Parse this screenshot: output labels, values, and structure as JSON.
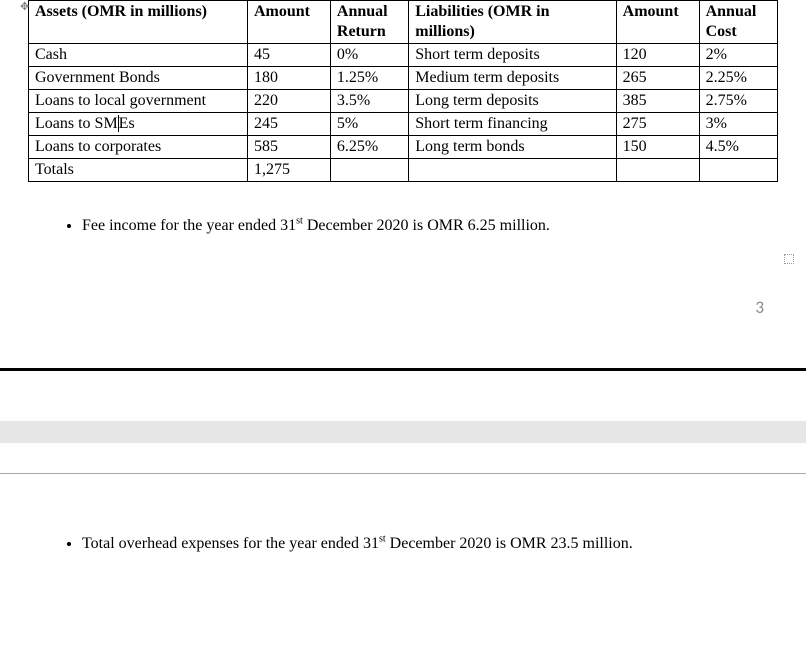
{
  "table": {
    "headers": {
      "assets": "Assets (OMR in millions)",
      "amount1": "Amount",
      "return": "Annual Return",
      "liabilities": "Liabilities (OMR in millions)",
      "amount2": "Amount",
      "cost": "Annual Cost"
    },
    "rows": [
      {
        "a_label": "Cash",
        "a_amount": "45",
        "a_return": "0%",
        "l_label": "Short term deposits",
        "l_amount": "120",
        "l_cost": "2%"
      },
      {
        "a_label": "Government Bonds",
        "a_amount": "180",
        "a_return": "1.25%",
        "l_label": "Medium term deposits",
        "l_amount": "265",
        "l_cost": "2.25%"
      },
      {
        "a_label": "Loans to local government",
        "a_amount": "220",
        "a_return": "3.5%",
        "l_label": "Long term deposits",
        "l_amount": "385",
        "l_cost": "2.75%"
      },
      {
        "a_label_pre": "Loans to SM",
        "a_label_post": "Es",
        "a_amount": "245",
        "a_return": "5%",
        "l_label": "Short term financing",
        "l_amount": "275",
        "l_cost": "3%"
      },
      {
        "a_label": "Loans to corporates",
        "a_amount": "585",
        "a_return": "6.25%",
        "l_label": "Long term bonds",
        "l_amount": "150",
        "l_cost": "4.5%"
      },
      {
        "a_label": "Totals",
        "a_amount": "1,275",
        "a_return": "",
        "l_label": "",
        "l_amount": "",
        "l_cost": ""
      }
    ]
  },
  "bullets": {
    "fee_income_pre": "Fee income for the year ended 31",
    "sup": "st",
    "fee_income_post": " December 2020 is OMR 6.25 million.",
    "overhead_pre": "Total overhead expenses for the year ended 31",
    "overhead_post": " December 2020 is OMR 23.5 million."
  },
  "page_number": "3",
  "colors": {
    "text": "#000000",
    "page_num": "#8b8b8b",
    "grey_band": "#e6e6e6",
    "sep_line": "#a9a9a9"
  }
}
